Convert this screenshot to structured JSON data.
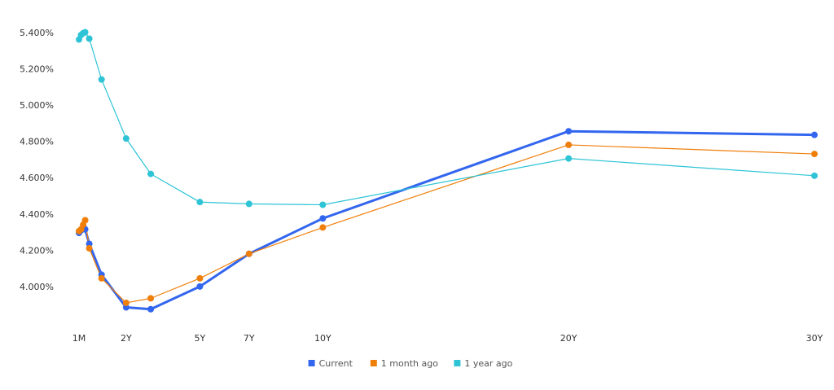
{
  "chart_data": {
    "type": "line",
    "x": [
      0.0833,
      0.1667,
      0.25,
      0.3333,
      0.5,
      1,
      2,
      3,
      5,
      7,
      10,
      20,
      30
    ],
    "series": [
      {
        "name": "Current",
        "color": "#3366ee",
        "values": [
          4.3,
          4.314,
          4.33,
          4.32,
          4.24,
          4.07,
          3.89,
          3.88,
          4.005,
          4.185,
          4.38,
          4.86,
          4.84
        ]
      },
      {
        "name": "1 month ago",
        "color": "#f07f0a",
        "values": [
          4.31,
          4.32,
          4.345,
          4.37,
          4.215,
          4.05,
          3.915,
          3.94,
          4.05,
          4.185,
          4.33,
          4.785,
          4.735
        ]
      },
      {
        "name": "1 year ago",
        "color": "#2ec4d6",
        "values": [
          5.365,
          5.39,
          5.4,
          5.405,
          5.37,
          5.145,
          4.82,
          4.625,
          4.47,
          4.46,
          4.455,
          4.71,
          4.615
        ]
      }
    ],
    "xlim": [
      0,
      30
    ],
    "xticks": [
      {
        "value": 0.0833,
        "label": "1M"
      },
      {
        "value": 2,
        "label": "2Y"
      },
      {
        "value": 5,
        "label": "5Y"
      },
      {
        "value": 7,
        "label": "7Y"
      },
      {
        "value": 10,
        "label": "10Y"
      },
      {
        "value": 20,
        "label": "20Y"
      },
      {
        "value": 30,
        "label": "30Y"
      }
    ],
    "ylim": [
      3.8,
      5.45
    ],
    "yticks": [
      {
        "value": 4.0,
        "label": "4.000%"
      },
      {
        "value": 4.2,
        "label": "4.200%"
      },
      {
        "value": 4.4,
        "label": "4.400%"
      },
      {
        "value": 4.6,
        "label": "4.600%"
      },
      {
        "value": 4.8,
        "label": "4.800%"
      },
      {
        "value": 5.0,
        "label": "5.000%"
      },
      {
        "value": 5.2,
        "label": "5.200%"
      },
      {
        "value": 5.4,
        "label": "5.400%"
      }
    ],
    "grid": false
  }
}
